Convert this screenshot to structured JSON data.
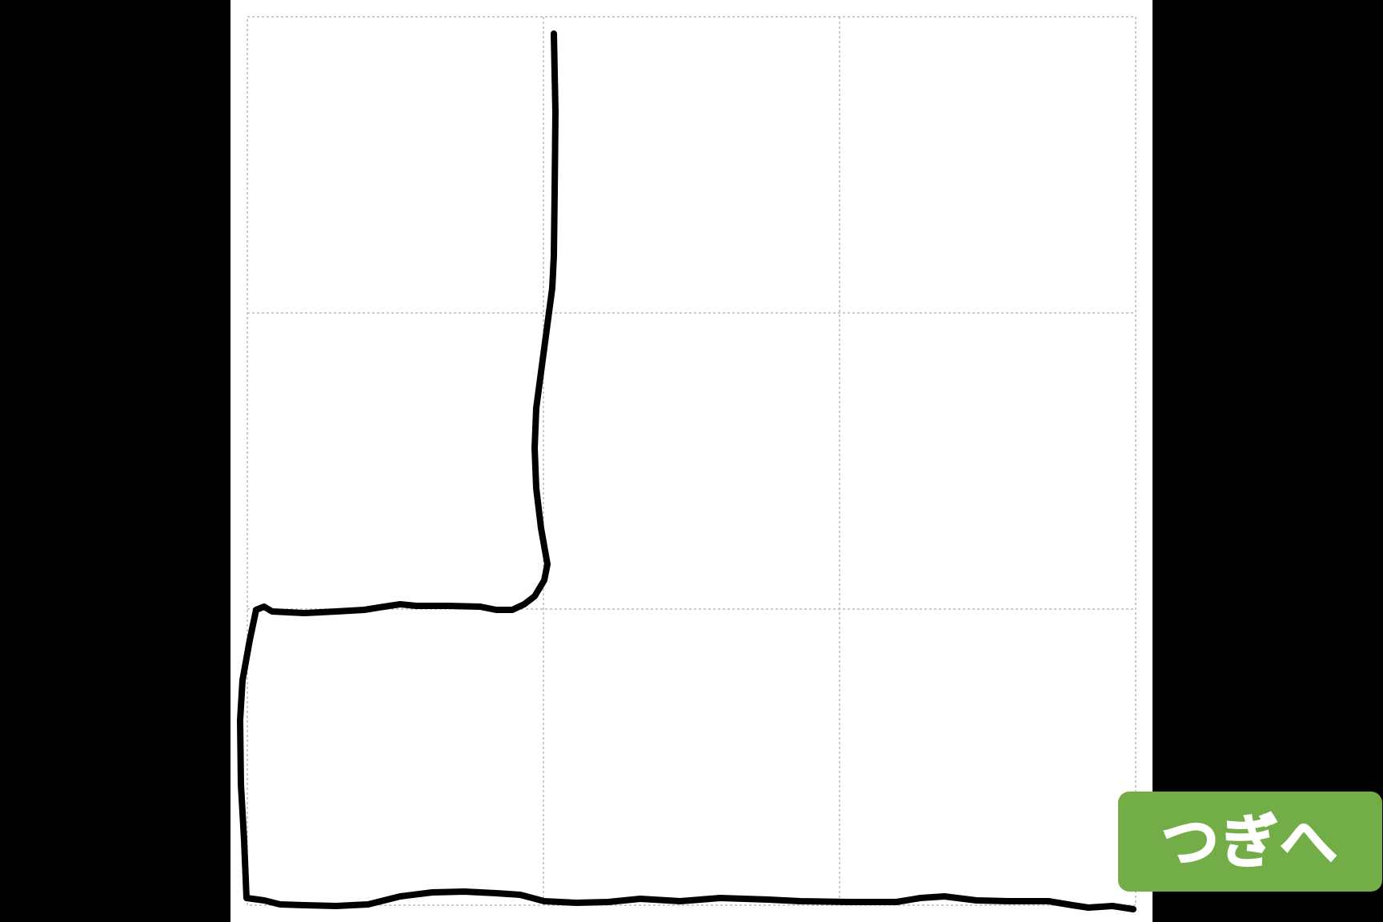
{
  "next_button": {
    "label": "つぎへ",
    "background_color": "#72ad47"
  },
  "canvas": {
    "background_color": "#ffffff",
    "surround_color": "#000000",
    "grid": {
      "rows": 3,
      "columns": 3,
      "line_style": "dotted",
      "line_color": "#bbbbbb"
    },
    "ink_color": "#000000"
  }
}
